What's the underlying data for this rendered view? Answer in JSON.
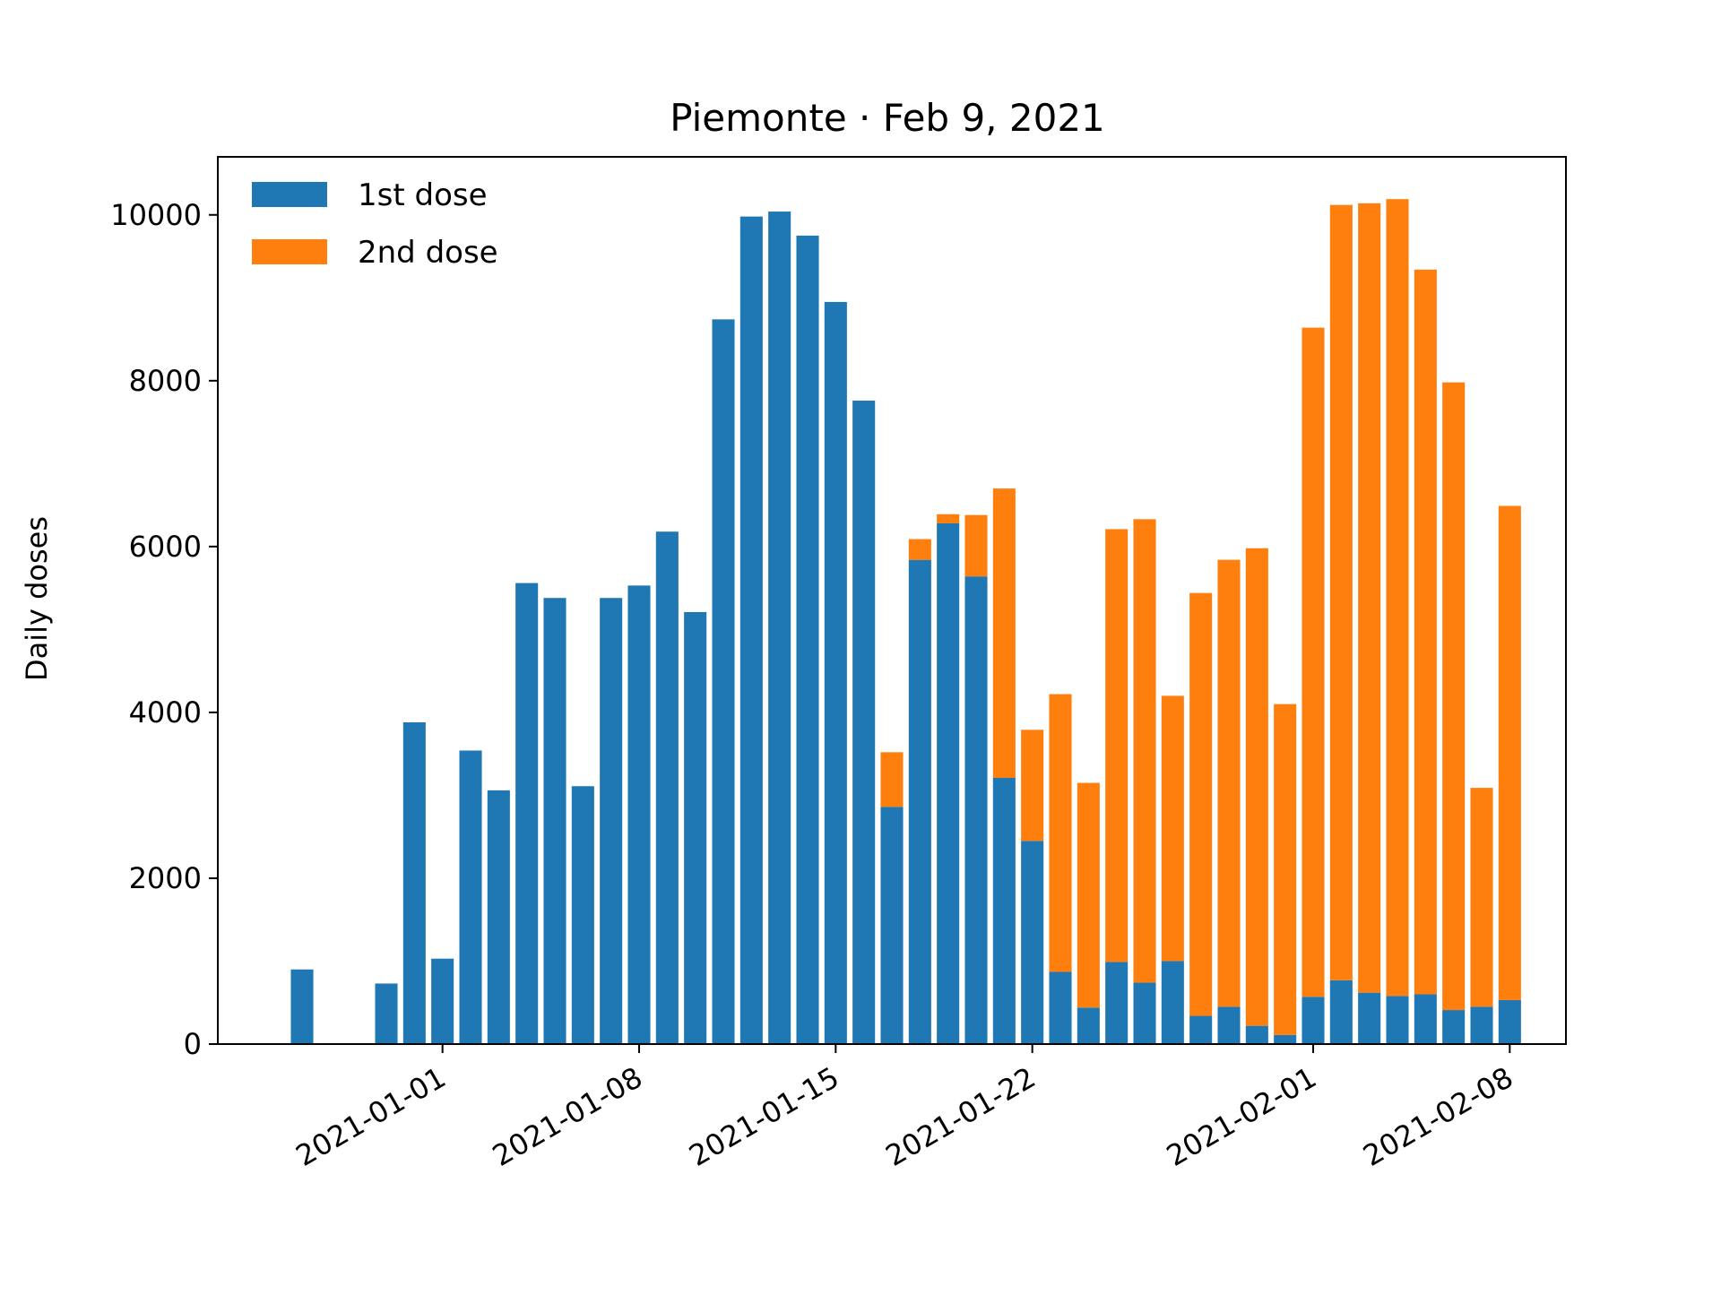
{
  "chart_data": {
    "type": "bar",
    "stacked": true,
    "title": "Piemonte · Feb 9, 2021",
    "xlabel": "",
    "ylabel": "Daily doses",
    "xlim": [
      "2020-12-24",
      "2021-02-10"
    ],
    "ylim": [
      0,
      10700
    ],
    "yticks": [
      0,
      2000,
      4000,
      6000,
      8000,
      10000
    ],
    "xticks": [
      "2021-01-01",
      "2021-01-08",
      "2021-01-15",
      "2021-01-22",
      "2021-02-01",
      "2021-02-08"
    ],
    "grid": false,
    "legend_position": "top-left",
    "dates": [
      "2020-12-27",
      "2020-12-28",
      "2020-12-29",
      "2020-12-30",
      "2020-12-31",
      "2021-01-01",
      "2021-01-02",
      "2021-01-03",
      "2021-01-04",
      "2021-01-05",
      "2021-01-06",
      "2021-01-07",
      "2021-01-08",
      "2021-01-09",
      "2021-01-10",
      "2021-01-11",
      "2021-01-12",
      "2021-01-13",
      "2021-01-14",
      "2021-01-15",
      "2021-01-16",
      "2021-01-17",
      "2021-01-18",
      "2021-01-19",
      "2021-01-20",
      "2021-01-21",
      "2021-01-22",
      "2021-01-23",
      "2021-01-24",
      "2021-01-25",
      "2021-01-26",
      "2021-01-27",
      "2021-01-28",
      "2021-01-29",
      "2021-01-30",
      "2021-01-31",
      "2021-02-01",
      "2021-02-02",
      "2021-02-03",
      "2021-02-04",
      "2021-02-05",
      "2021-02-06",
      "2021-02-07",
      "2021-02-08"
    ],
    "series": [
      {
        "name": "1st dose",
        "color": "#1f77b4",
        "values": [
          900,
          0,
          0,
          730,
          3880,
          1030,
          3540,
          3060,
          5560,
          5380,
          3110,
          5380,
          5530,
          6180,
          5210,
          8740,
          9980,
          10040,
          9750,
          8950,
          7760,
          2860,
          5840,
          6280,
          5640,
          3210,
          2450,
          870,
          440,
          990,
          740,
          1000,
          340,
          450,
          220,
          110,
          570,
          770,
          620,
          580,
          600,
          410,
          450,
          530
        ]
      },
      {
        "name": "2nd dose",
        "color": "#ff7f0e",
        "values": [
          0,
          0,
          0,
          0,
          0,
          0,
          0,
          0,
          0,
          0,
          0,
          0,
          0,
          0,
          0,
          0,
          0,
          0,
          0,
          0,
          0,
          660,
          250,
          110,
          740,
          3490,
          1340,
          3350,
          2710,
          5220,
          5590,
          3200,
          5100,
          5390,
          5760,
          3990,
          8070,
          9350,
          9520,
          9610,
          8740,
          7570,
          2640,
          5960
        ]
      }
    ]
  }
}
